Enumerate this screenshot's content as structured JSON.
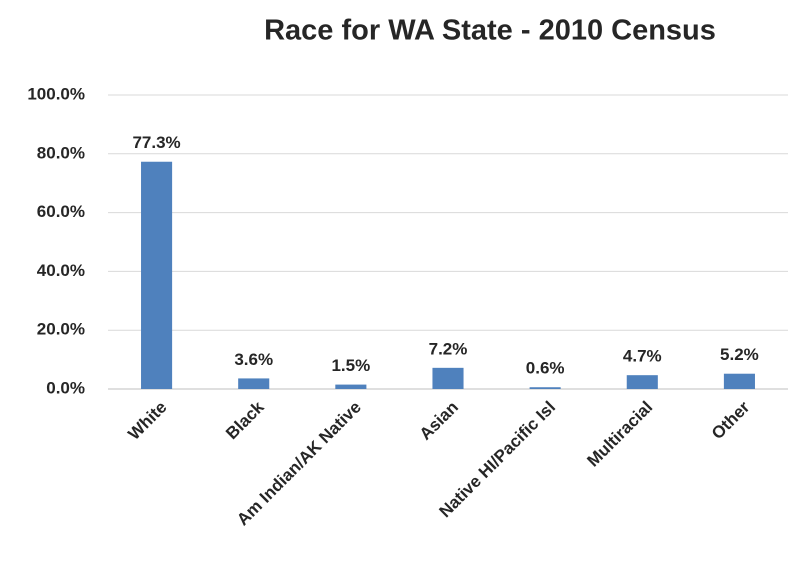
{
  "chart_data": {
    "type": "bar",
    "title": "Race for WA State - 2010 Census",
    "categories": [
      "White",
      "Black",
      "Am Indian/AK Native",
      "Asian",
      "Native HI/Pacific Isl",
      "Multiracial",
      "Other"
    ],
    "values": [
      77.3,
      3.6,
      1.5,
      7.2,
      0.6,
      4.7,
      5.2
    ],
    "value_labels": [
      "77.3%",
      "3.6%",
      "1.5%",
      "7.2%",
      "0.6%",
      "4.7%",
      "5.2%"
    ],
    "color": "#4f81bd",
    "ylim": [
      0,
      100
    ],
    "yticks": [
      {
        "value": 0,
        "label": "0.0%"
      },
      {
        "value": 20,
        "label": "20.0%"
      },
      {
        "value": 40,
        "label": "40.0%"
      },
      {
        "value": 60,
        "label": "60.0%"
      },
      {
        "value": 80,
        "label": "80.0%"
      },
      {
        "value": 100,
        "label": "100.0%"
      }
    ],
    "grid": true
  }
}
